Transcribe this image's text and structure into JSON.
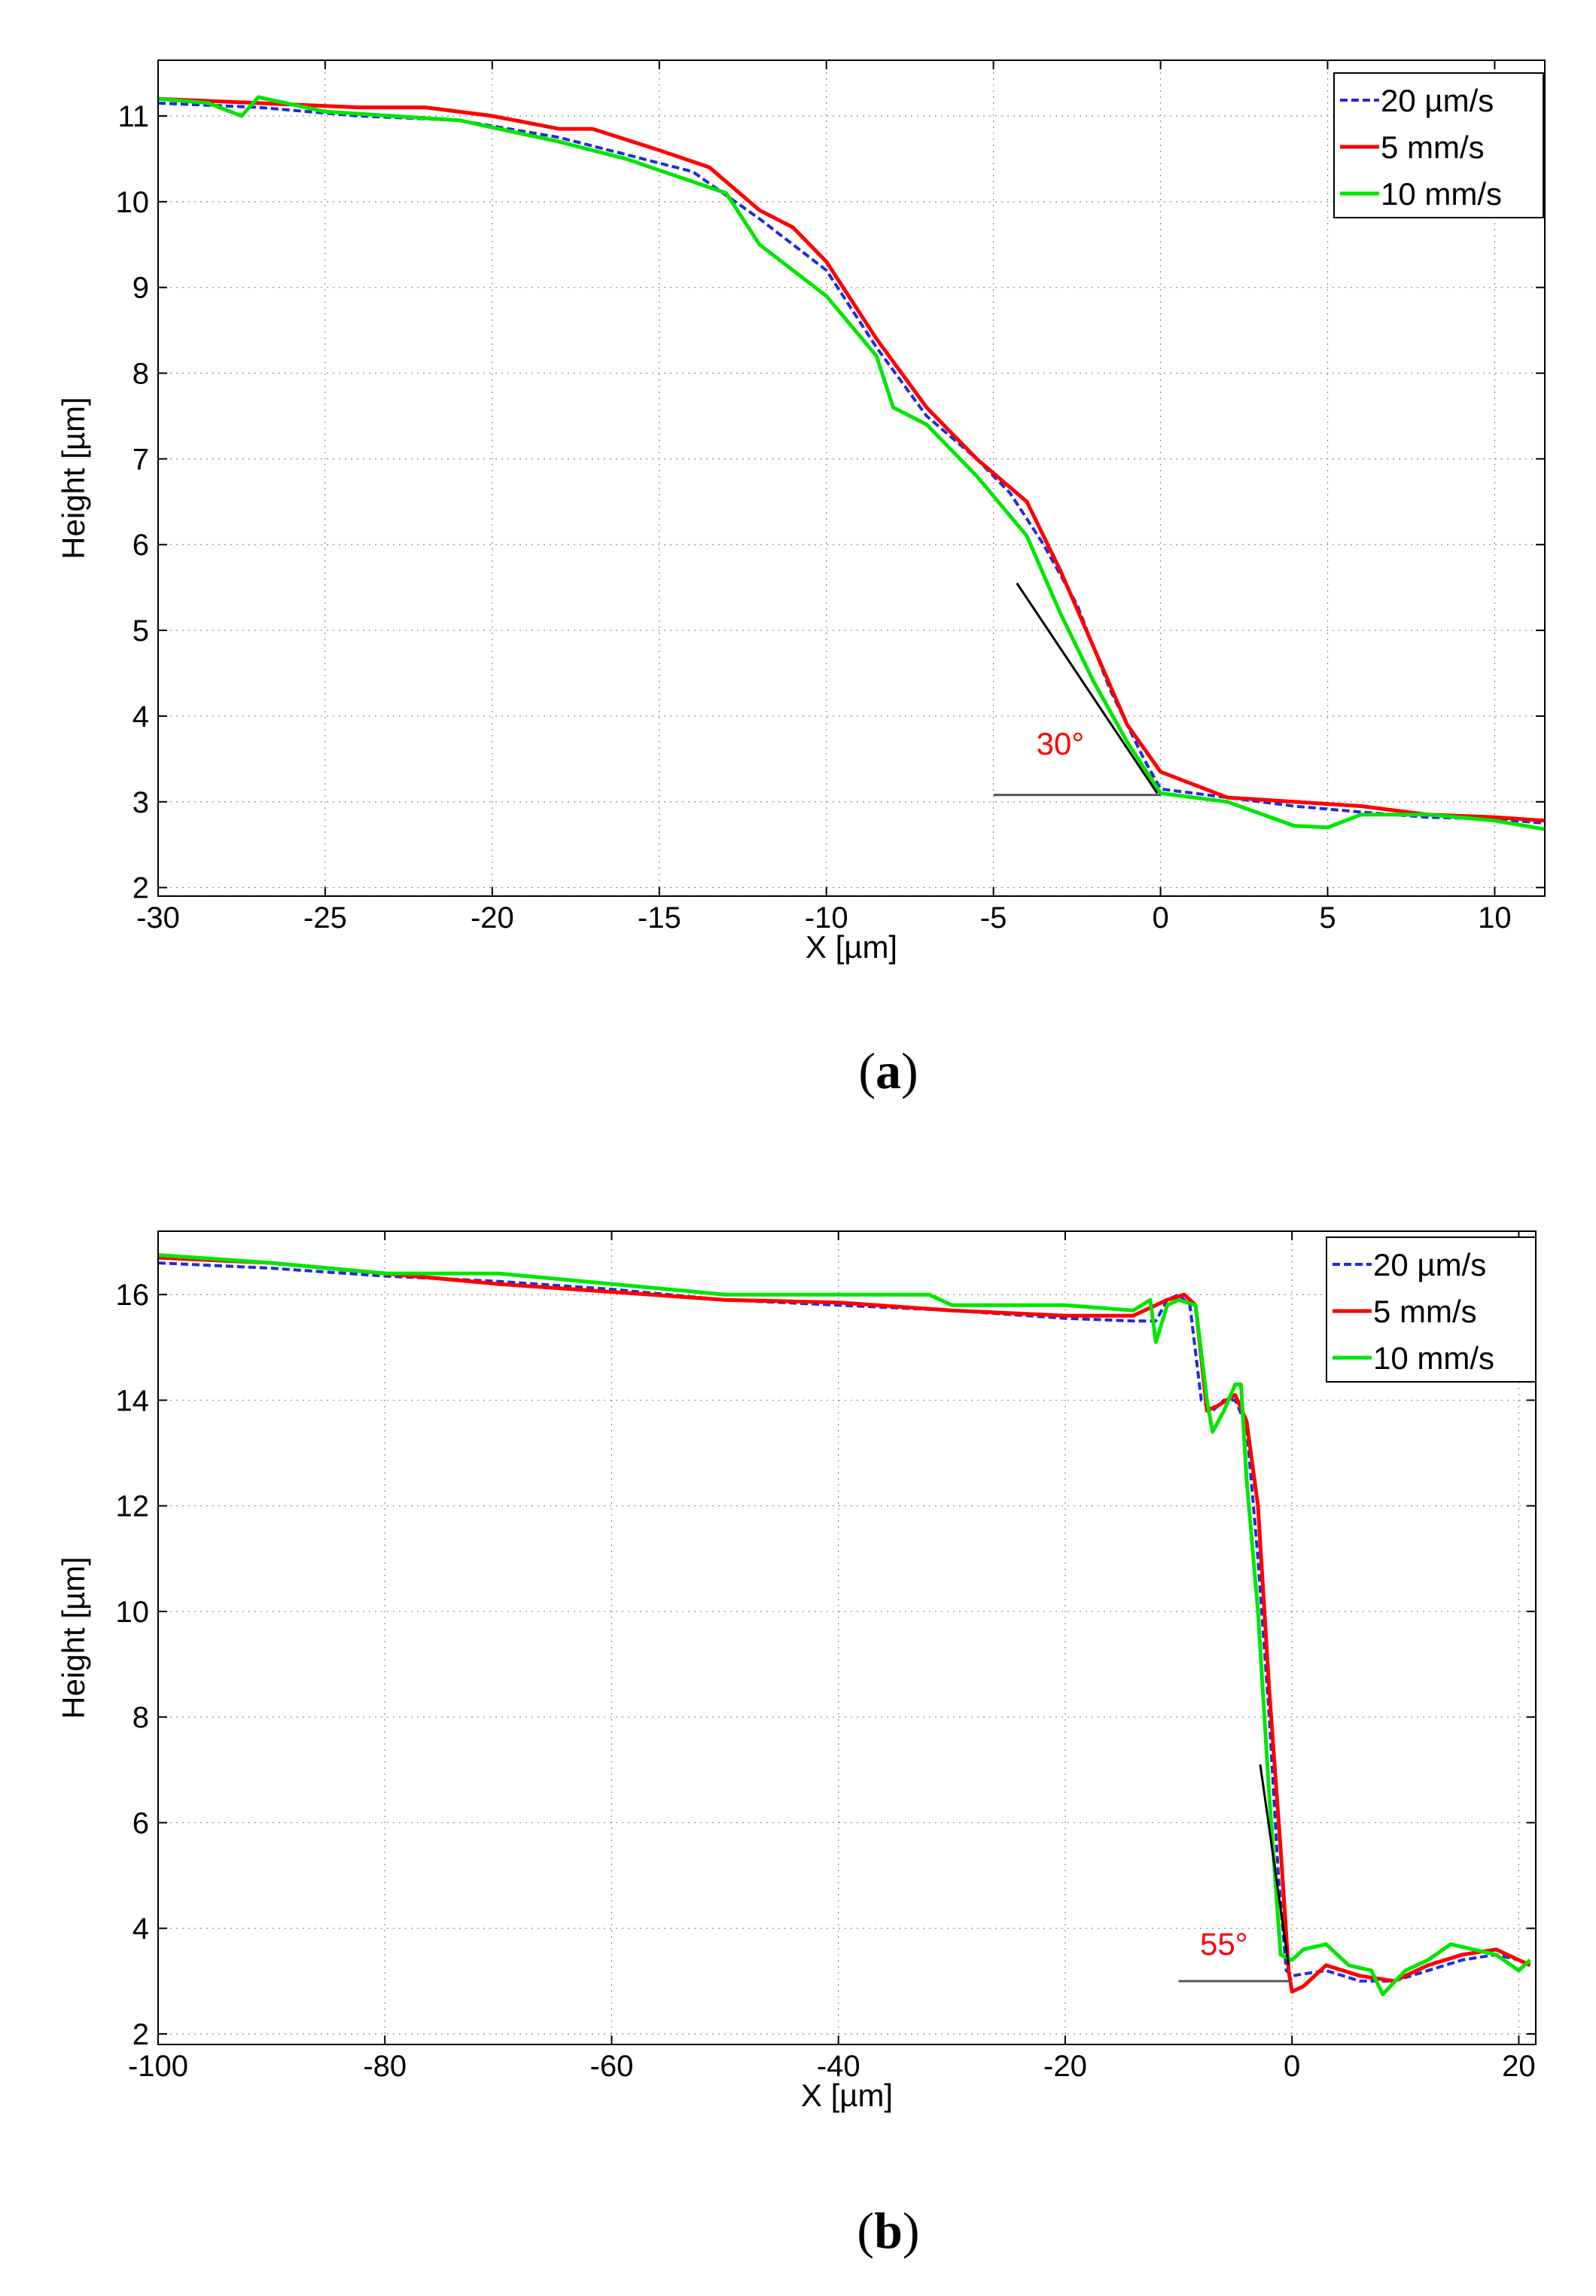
{
  "colors": {
    "series_20um": "#1f2bdc",
    "series_5mm": "#ff0000",
    "series_10mm": "#00e600",
    "angle_label": "#ff0000",
    "guide_line": "#000000",
    "grid": "#8a8a8a"
  },
  "chart_data": [
    {
      "id": "a",
      "type": "line",
      "panel_label": "a",
      "xlabel": "X [µm]",
      "ylabel": "Height [µm]",
      "xlim": [
        -30,
        11.5
      ],
      "ylim": [
        1.9,
        11.65
      ],
      "xticks": [
        -30,
        -25,
        -20,
        -15,
        -10,
        -5,
        0,
        5,
        10
      ],
      "xtick_labels": [
        "-30",
        "-25",
        "-20",
        "-15",
        "-10",
        "-5",
        "0",
        "5",
        "10"
      ],
      "yticks": [
        2,
        3,
        4,
        5,
        6,
        7,
        8,
        9,
        10,
        11
      ],
      "ytick_labels": [
        "2",
        "3",
        "4",
        "5",
        "6",
        "7",
        "8",
        "9",
        "10",
        "11"
      ],
      "grid": true,
      "legend_position": "top-right",
      "annotation": {
        "text": "30°",
        "text_at": [
          -3.0,
          3.55
        ],
        "slope_line": [
          [
            -4.3,
            5.55
          ],
          [
            -0.1,
            3.1
          ]
        ],
        "base_line": [
          [
            -5.0,
            3.08
          ],
          [
            0.0,
            3.08
          ]
        ]
      },
      "series": [
        {
          "name": "20 µm/s",
          "style": "dashed",
          "color_key": "series_20um",
          "points": [
            [
              -30,
              11.15
            ],
            [
              -27,
              11.1
            ],
            [
              -24,
              11.0
            ],
            [
              -21,
              10.95
            ],
            [
              -18,
              10.75
            ],
            [
              -16,
              10.55
            ],
            [
              -14,
              10.35
            ],
            [
              -12,
              9.8
            ],
            [
              -10,
              9.2
            ],
            [
              -8.5,
              8.3
            ],
            [
              -7,
              7.5
            ],
            [
              -5.5,
              7.0
            ],
            [
              -4.5,
              6.6
            ],
            [
              -3.5,
              6.0
            ],
            [
              -2.5,
              5.3
            ],
            [
              -1.5,
              4.3
            ],
            [
              -0.5,
              3.5
            ],
            [
              0,
              3.15
            ],
            [
              2,
              3.05
            ],
            [
              4,
              2.95
            ],
            [
              6,
              2.88
            ],
            [
              8,
              2.82
            ],
            [
              10,
              2.8
            ],
            [
              11.5,
              2.75
            ]
          ]
        },
        {
          "name": "5 mm/s",
          "style": "solid",
          "color_key": "series_5mm",
          "points": [
            [
              -30,
              11.2
            ],
            [
              -27,
              11.15
            ],
            [
              -24,
              11.1
            ],
            [
              -22,
              11.1
            ],
            [
              -20,
              11.0
            ],
            [
              -18,
              10.85
            ],
            [
              -17,
              10.85
            ],
            [
              -15,
              10.6
            ],
            [
              -13.5,
              10.4
            ],
            [
              -12,
              9.9
            ],
            [
              -11,
              9.7
            ],
            [
              -10,
              9.3
            ],
            [
              -8.5,
              8.4
            ],
            [
              -7,
              7.6
            ],
            [
              -5.5,
              7.0
            ],
            [
              -4,
              6.5
            ],
            [
              -3,
              5.7
            ],
            [
              -2,
              4.8
            ],
            [
              -1,
              3.9
            ],
            [
              0,
              3.35
            ],
            [
              2,
              3.05
            ],
            [
              4,
              3.0
            ],
            [
              6,
              2.95
            ],
            [
              8,
              2.85
            ],
            [
              10,
              2.82
            ],
            [
              11.5,
              2.78
            ]
          ]
        },
        {
          "name": "10 mm/s",
          "style": "solid",
          "color_key": "series_10mm",
          "points": [
            [
              -30,
              11.2
            ],
            [
              -28.5,
              11.15
            ],
            [
              -27.5,
              11.0
            ],
            [
              -27,
              11.22
            ],
            [
              -25,
              11.05
            ],
            [
              -21,
              10.95
            ],
            [
              -18,
              10.7
            ],
            [
              -16,
              10.5
            ],
            [
              -13,
              10.1
            ],
            [
              -12,
              9.5
            ],
            [
              -10,
              8.9
            ],
            [
              -8.5,
              8.2
            ],
            [
              -8,
              7.6
            ],
            [
              -7,
              7.4
            ],
            [
              -5.5,
              6.8
            ],
            [
              -4,
              6.1
            ],
            [
              -3,
              5.2
            ],
            [
              -2,
              4.4
            ],
            [
              -1,
              3.7
            ],
            [
              0,
              3.1
            ],
            [
              2,
              3.0
            ],
            [
              4,
              2.72
            ],
            [
              5,
              2.7
            ],
            [
              6,
              2.85
            ],
            [
              8,
              2.85
            ],
            [
              10,
              2.78
            ],
            [
              11.5,
              2.68
            ]
          ]
        }
      ]
    },
    {
      "id": "b",
      "type": "line",
      "panel_label": "b",
      "xlabel": "X [µm]",
      "ylabel": "Height [µm]",
      "xlim": [
        -100,
        21.5
      ],
      "ylim": [
        1.8,
        17.2
      ],
      "xticks": [
        -100,
        -80,
        -60,
        -40,
        -20,
        0,
        20
      ],
      "xtick_labels": [
        "-100",
        "-80",
        "-60",
        "-40",
        "-20",
        "0",
        "20"
      ],
      "yticks": [
        2,
        4,
        6,
        8,
        10,
        12,
        14,
        16
      ],
      "ytick_labels": [
        "2",
        "4",
        "6",
        "8",
        "10",
        "12",
        "14",
        "16"
      ],
      "grid": true,
      "legend_position": "top-right",
      "annotation": {
        "text": "55°",
        "text_at": [
          -6.0,
          3.5
        ],
        "slope_line": [
          [
            -2.8,
            7.1
          ],
          [
            -0.3,
            3.3
          ]
        ],
        "base_line": [
          [
            -10.0,
            3.0
          ],
          [
            0.0,
            3.0
          ]
        ]
      },
      "series": [
        {
          "name": "20 µm/s",
          "style": "dashed",
          "color_key": "series_20um",
          "points": [
            [
              -100,
              16.6
            ],
            [
              -90,
              16.5
            ],
            [
              -80,
              16.35
            ],
            [
              -70,
              16.25
            ],
            [
              -60,
              16.1
            ],
            [
              -50,
              15.9
            ],
            [
              -40,
              15.8
            ],
            [
              -30,
              15.7
            ],
            [
              -20,
              15.55
            ],
            [
              -14,
              15.5
            ],
            [
              -12,
              15.5
            ],
            [
              -11,
              15.9
            ],
            [
              -10,
              16.0
            ],
            [
              -9,
              15.8
            ],
            [
              -8,
              14.0
            ],
            [
              -7,
              13.8
            ],
            [
              -6,
              14.0
            ],
            [
              -5,
              14.0
            ],
            [
              -4,
              13.5
            ],
            [
              -3,
              11.0
            ],
            [
              -2,
              8.0
            ],
            [
              -1.2,
              5.0
            ],
            [
              -0.5,
              3.2
            ],
            [
              0,
              3.1
            ],
            [
              3,
              3.2
            ],
            [
              6,
              3.0
            ],
            [
              9,
              3.0
            ],
            [
              12,
              3.2
            ],
            [
              15,
              3.4
            ],
            [
              18,
              3.5
            ],
            [
              20,
              3.4
            ],
            [
              21,
              3.3
            ]
          ]
        },
        {
          "name": "5 mm/s",
          "style": "solid",
          "color_key": "series_5mm",
          "points": [
            [
              -100,
              16.7
            ],
            [
              -90,
              16.6
            ],
            [
              -80,
              16.4
            ],
            [
              -70,
              16.2
            ],
            [
              -60,
              16.05
            ],
            [
              -50,
              15.9
            ],
            [
              -40,
              15.85
            ],
            [
              -30,
              15.7
            ],
            [
              -20,
              15.6
            ],
            [
              -14,
              15.6
            ],
            [
              -12,
              15.8
            ],
            [
              -11,
              15.9
            ],
            [
              -9.5,
              16.0
            ],
            [
              -8.5,
              15.8
            ],
            [
              -7.5,
              13.8
            ],
            [
              -6.5,
              13.9
            ],
            [
              -5,
              14.1
            ],
            [
              -4,
              13.6
            ],
            [
              -3,
              12.0
            ],
            [
              -2,
              8.5
            ],
            [
              -1,
              5.5
            ],
            [
              -0.3,
              3.2
            ],
            [
              0,
              2.8
            ],
            [
              1,
              2.9
            ],
            [
              3,
              3.3
            ],
            [
              6,
              3.1
            ],
            [
              9,
              3.0
            ],
            [
              12,
              3.3
            ],
            [
              15,
              3.5
            ],
            [
              18,
              3.6
            ],
            [
              21,
              3.3
            ]
          ]
        },
        {
          "name": "10 mm/s",
          "style": "solid",
          "color_key": "series_10mm",
          "points": [
            [
              -100,
              16.75
            ],
            [
              -90,
              16.6
            ],
            [
              -80,
              16.4
            ],
            [
              -70,
              16.4
            ],
            [
              -60,
              16.2
            ],
            [
              -50,
              16.0
            ],
            [
              -40,
              16.0
            ],
            [
              -32,
              16.0
            ],
            [
              -30,
              15.8
            ],
            [
              -20,
              15.8
            ],
            [
              -14,
              15.7
            ],
            [
              -12.5,
              15.9
            ],
            [
              -12,
              15.1
            ],
            [
              -11,
              15.8
            ],
            [
              -10,
              15.9
            ],
            [
              -8.5,
              15.8
            ],
            [
              -7.5,
              14.0
            ],
            [
              -7,
              13.4
            ],
            [
              -6,
              13.8
            ],
            [
              -5,
              14.3
            ],
            [
              -4.5,
              14.3
            ],
            [
              -4,
              12.5
            ],
            [
              -3,
              10.0
            ],
            [
              -2,
              6.5
            ],
            [
              -1,
              3.5
            ],
            [
              0,
              3.4
            ],
            [
              1,
              3.6
            ],
            [
              3,
              3.7
            ],
            [
              5,
              3.3
            ],
            [
              7,
              3.2
            ],
            [
              8,
              2.75
            ],
            [
              10,
              3.2
            ],
            [
              12,
              3.4
            ],
            [
              14,
              3.7
            ],
            [
              16,
              3.6
            ],
            [
              18,
              3.5
            ],
            [
              20,
              3.2
            ],
            [
              21,
              3.4
            ]
          ]
        }
      ]
    }
  ]
}
